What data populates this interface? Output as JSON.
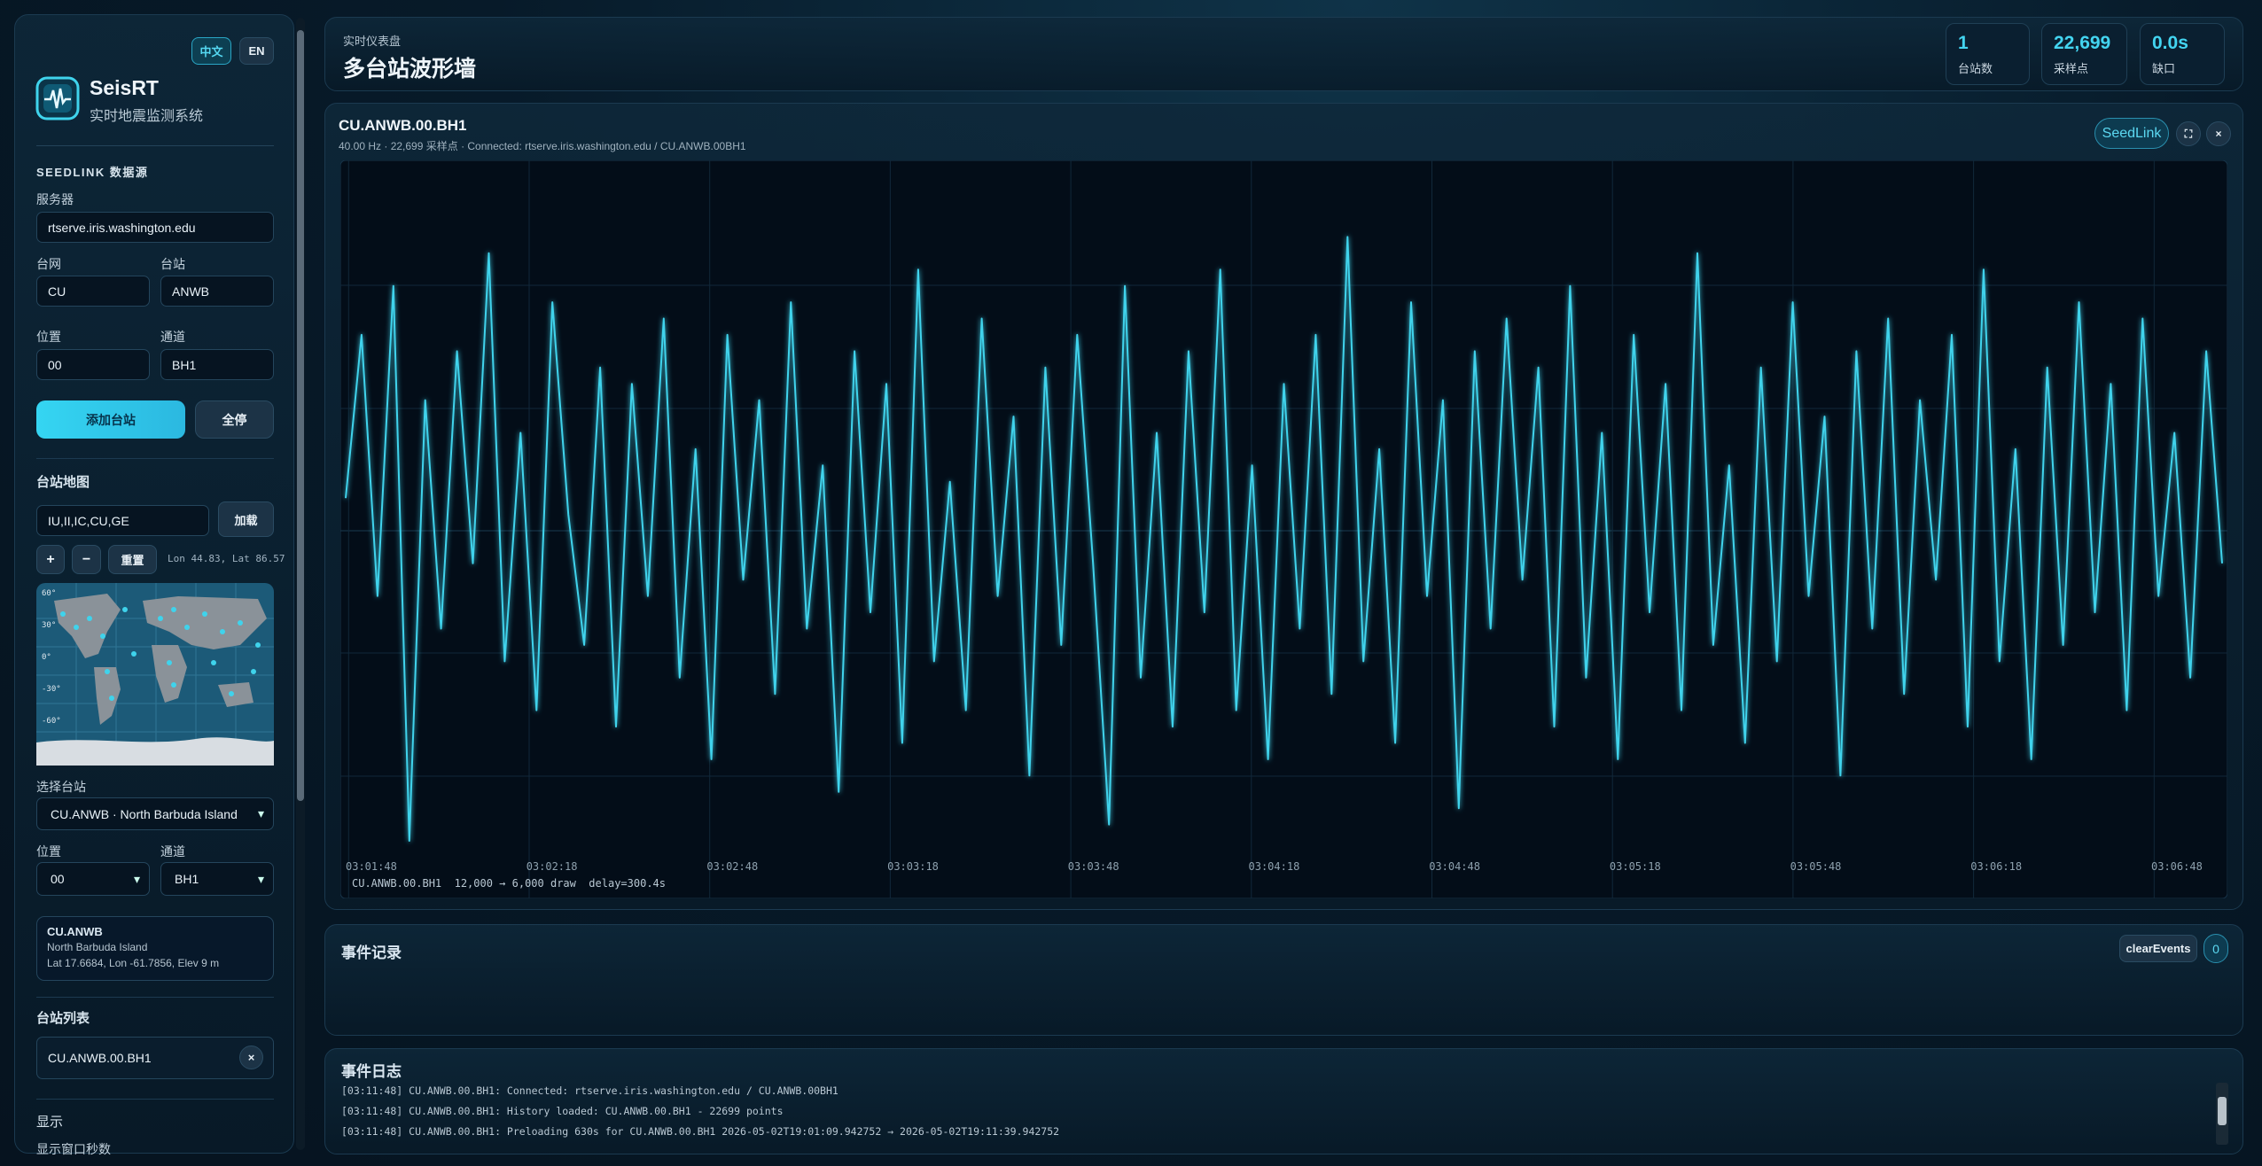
{
  "sidebar": {
    "languages": [
      "中文",
      "EN"
    ],
    "brand": {
      "title": "SeisRT",
      "subtitle": "实时地震监测系统"
    },
    "source": {
      "heading": "SEEDLINK 数据源",
      "server_label": "服务器",
      "server": "rtserve.iris.washington.edu",
      "network_label": "台网",
      "network": "CU",
      "station_label": "台站",
      "station": "ANWB",
      "location_label": "位置",
      "location": "00",
      "channel_label": "通道",
      "channel": "BH1",
      "add_button": "添加台站",
      "stop_button": "全停"
    },
    "map": {
      "heading": "台站地图",
      "networks": "IU,II,IC,CU,GE",
      "load_button": "加载",
      "zoom_in": "+",
      "zoom_out": "−",
      "reset": "重置",
      "cursor": "Lon 44.83, Lat 86.57",
      "lat_labels": [
        "60°",
        "30°",
        "0°",
        "-30°",
        "-60°"
      ]
    },
    "select": {
      "station_label": "选择台站",
      "station": "CU.ANWB · North Barbuda Island",
      "location_label": "位置",
      "location": "00",
      "channel_label": "通道",
      "channel": "BH1"
    },
    "info": {
      "code": "CU.ANWB",
      "name": "North Barbuda Island",
      "coords": "Lat 17.6684, Lon -61.7856, Elev 9 m"
    },
    "list": {
      "heading": "台站列表",
      "items": [
        "CU.ANWB.00.BH1"
      ],
      "remove": "×"
    },
    "display": {
      "heading": "显示",
      "window_label": "显示窗口秒数"
    }
  },
  "header": {
    "eyebrow": "实时仪表盘",
    "title": "多台站波形墙",
    "stats": [
      {
        "value": "1",
        "label": "台站数"
      },
      {
        "value": "22,699",
        "label": "采样点"
      },
      {
        "value": "0.0s",
        "label": "缺口"
      }
    ]
  },
  "panel": {
    "title": "CU.ANWB.00.BH1",
    "subtitle": "40.00 Hz · 22,699 采样点 · Connected: rtserve.iris.washington.edu / CU.ANWB.00BH1",
    "buttons": [
      "SeedLink",
      "⛶",
      "×"
    ],
    "footer": "CU.ANWB.00.BH1  12,000 → 6,000 draw  delay=300.4s",
    "chart_data": {
      "type": "line",
      "color": "#3fd3ec",
      "x_labels": [
        "03:01:48",
        "03:02:18",
        "03:02:48",
        "03:03:18",
        "03:03:48",
        "03:04:18",
        "03:04:48",
        "03:05:18",
        "03:05:48",
        "03:06:18",
        "03:06:48"
      ],
      "values": [
        10,
        60,
        -20,
        75,
        -95,
        40,
        -30,
        55,
        -10,
        85,
        -40,
        30,
        -55,
        70,
        5,
        -35,
        50,
        -60,
        45,
        -20,
        65,
        -45,
        25,
        -70,
        60,
        -15,
        40,
        -50,
        70,
        -30,
        20,
        -80,
        55,
        -25,
        45,
        -65,
        80,
        -40,
        15,
        -55,
        65,
        -20,
        35,
        -75,
        50,
        -35,
        60,
        -10,
        -90,
        75,
        -45,
        30,
        -60,
        55,
        -25,
        80,
        -55,
        20,
        -70,
        45,
        -30,
        60,
        -50,
        90,
        -40,
        25,
        -65,
        70,
        -20,
        40,
        -85,
        55,
        -30,
        65,
        -15,
        50,
        -60,
        75,
        -45,
        30,
        -70,
        60,
        -25,
        45,
        -55,
        85,
        -35,
        20,
        -65,
        50,
        -40,
        70,
        -20,
        35,
        -75,
        55,
        -30,
        65,
        -50,
        40,
        -15,
        60,
        -60,
        80,
        -40,
        25,
        -70,
        50,
        -35,
        70,
        -25,
        45,
        -55,
        65,
        -20,
        30,
        -45,
        55,
        -10
      ]
    }
  },
  "events": {
    "title": "事件记录",
    "clear_button": "clearEvents",
    "count": "0"
  },
  "log": {
    "title": "事件日志",
    "lines": [
      "[03:11:48] CU.ANWB.00.BH1: Connected: rtserve.iris.washington.edu / CU.ANWB.00BH1",
      "[03:11:48] CU.ANWB.00.BH1: History loaded: CU.ANWB.00.BH1 - 22699 points",
      "[03:11:48] CU.ANWB.00.BH1: Preloading 630s for CU.ANWB.00.BH1 2026-05-02T19:01:09.942752 → 2026-05-02T19:11:39.942752"
    ]
  }
}
